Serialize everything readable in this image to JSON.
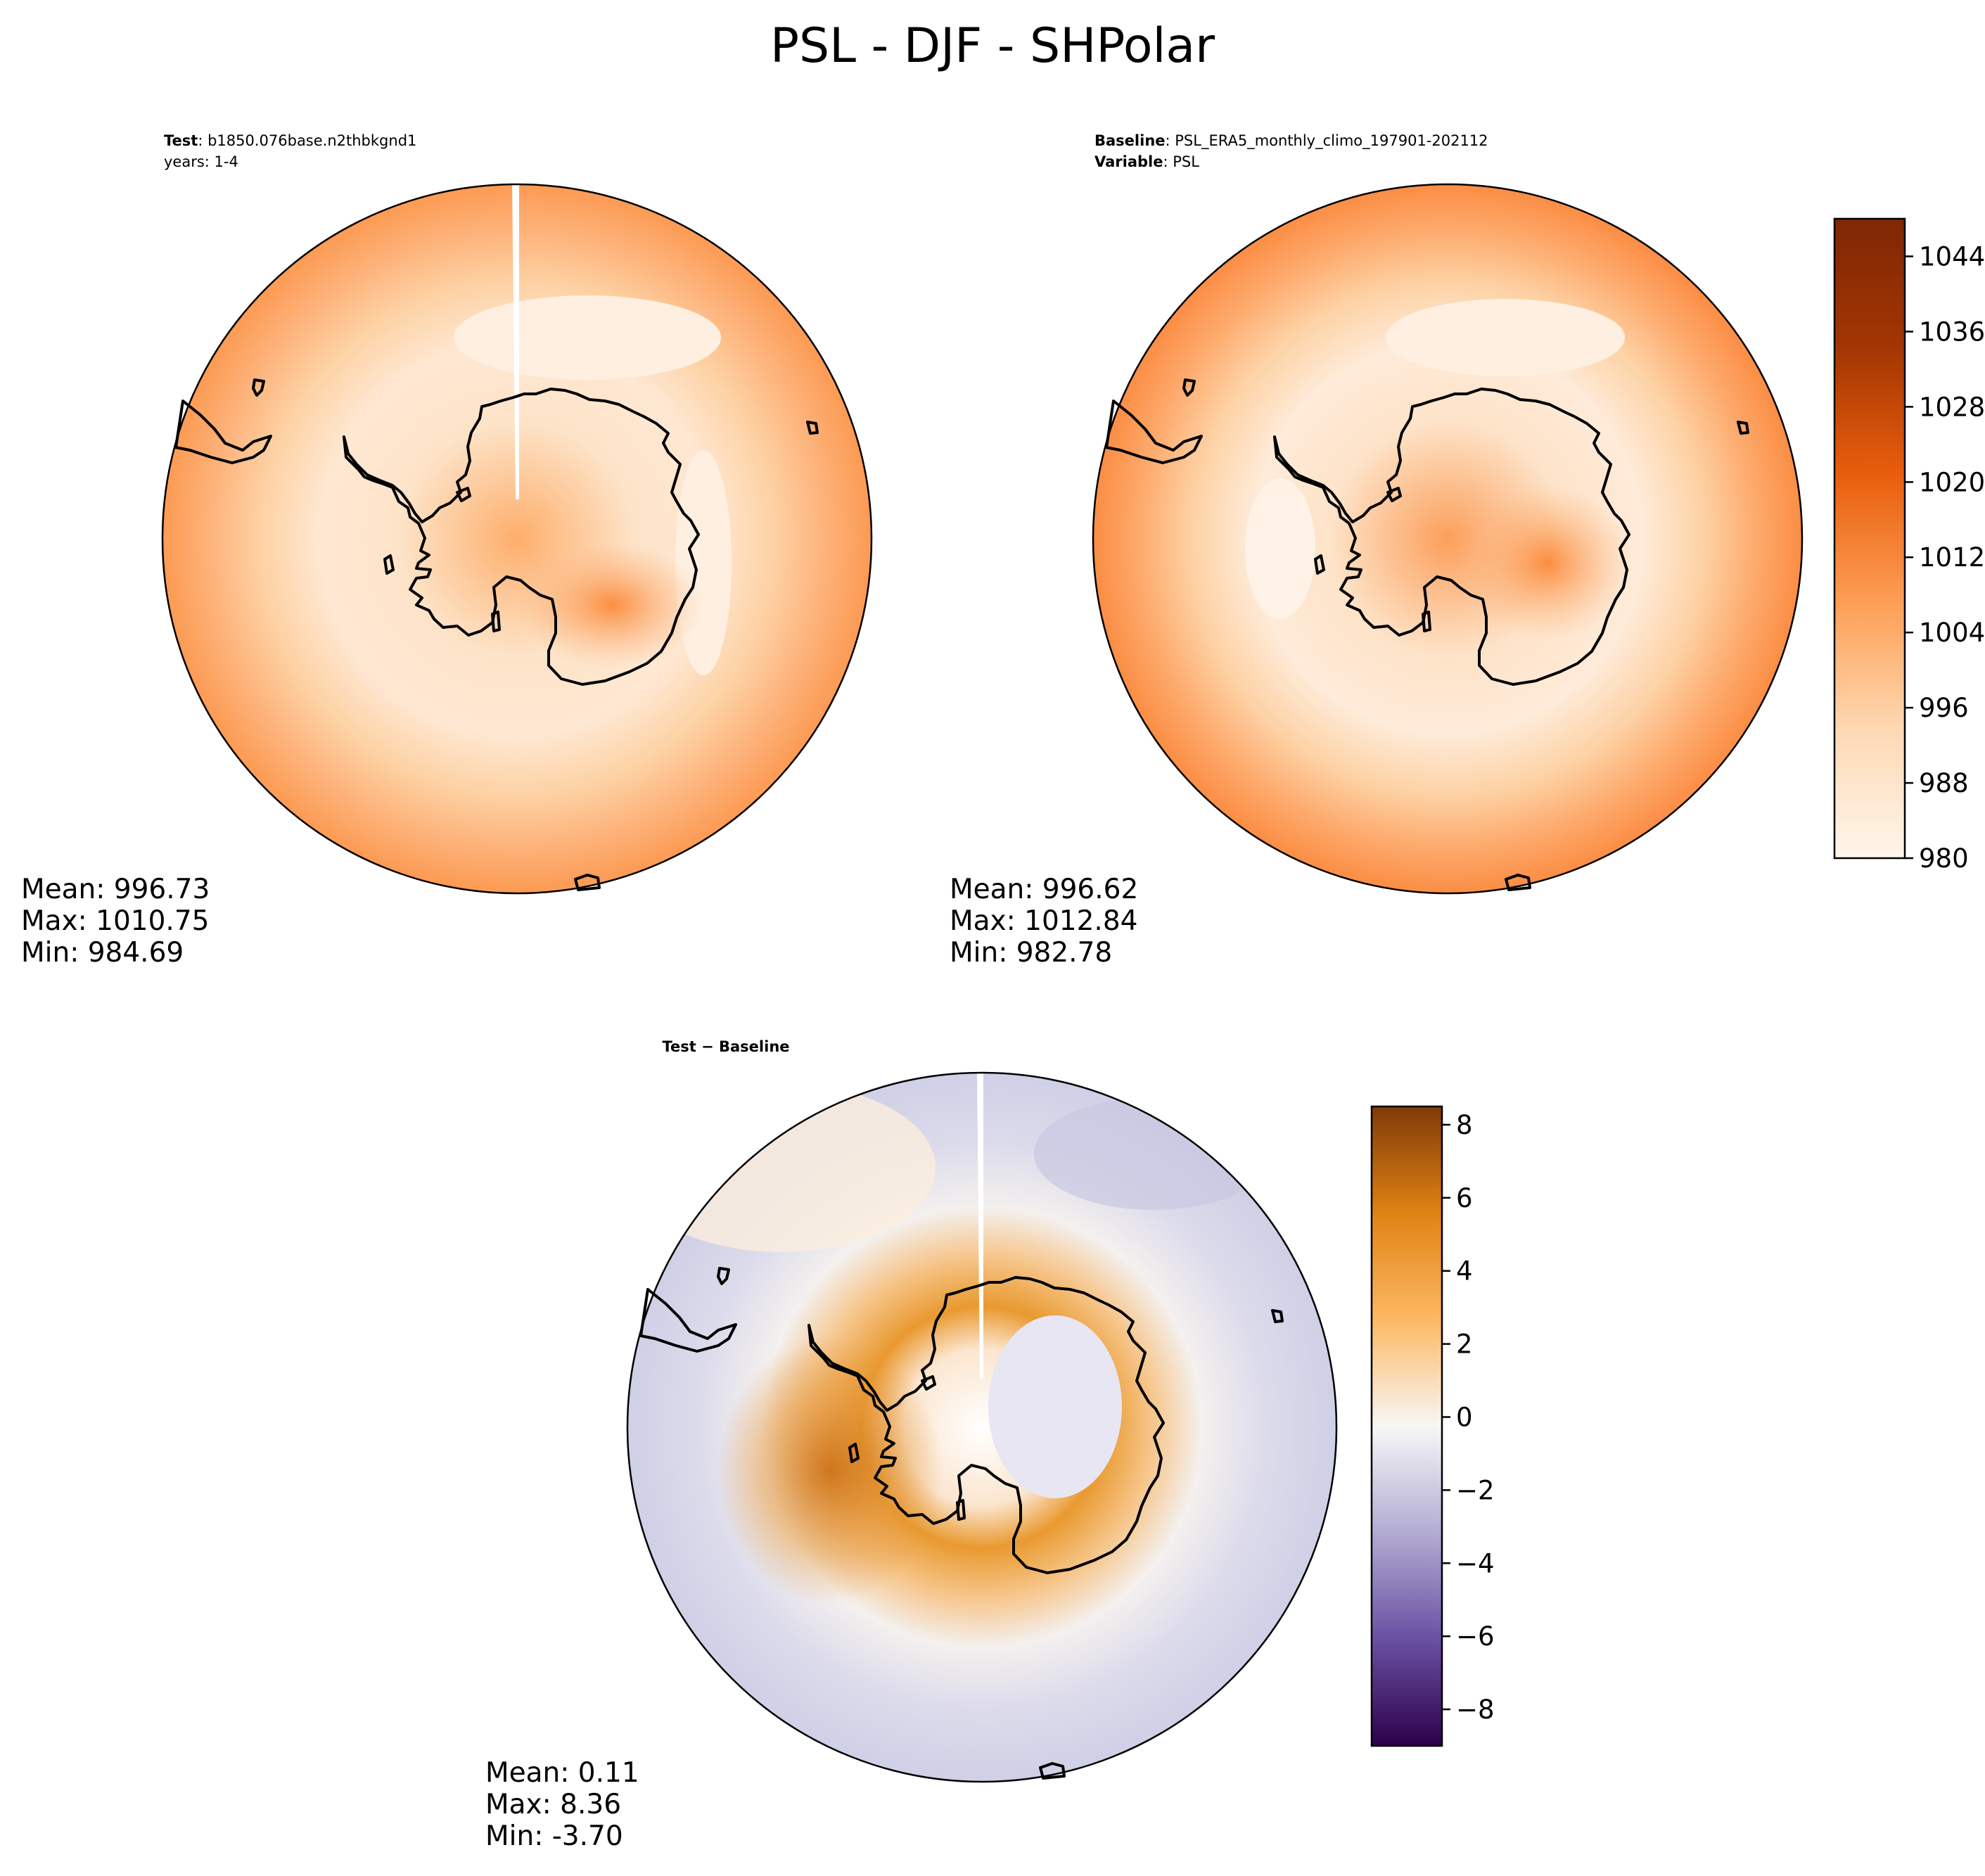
{
  "figure_title": "PSL - DJF - SHPolar",
  "panels": {
    "test": {
      "label_bold": "Test",
      "label_rest": ": b1850.076base.n2thbkgnd1",
      "years": "years: 1-4",
      "stats": [
        "Mean: 996.73",
        "Max: 1010.75",
        "Min: 984.69"
      ]
    },
    "baseline": {
      "label_bold": "Baseline",
      "label_rest": ": PSL_ERA5_monthly_climo_197901-202112",
      "var_bold": "Variable",
      "var_rest": ": PSL",
      "stats": [
        "Mean: 996.62",
        "Max: 1012.84",
        "Min: 982.78"
      ]
    },
    "diff": {
      "label": "Test − Baseline",
      "stats": [
        "Mean:  0.11",
        "Max:  8.36",
        "Min: -3.70"
      ]
    }
  },
  "colorbars": {
    "psl": {
      "ticks": [
        "980",
        "988",
        "996",
        "1004",
        "1012",
        "1020",
        "1028",
        "1036",
        "1044"
      ],
      "min": 980,
      "max": 1048,
      "colors": [
        "#fff5eb",
        "#fdd9b4",
        "#fd9e54",
        "#e95e0d",
        "#a33503",
        "#7f2704"
      ]
    },
    "diff": {
      "ticks": [
        "8",
        "6",
        "4",
        "2",
        "0",
        "−2",
        "−4",
        "−6",
        "−8"
      ],
      "min": -9,
      "max": 8.5,
      "colors": [
        "#2d004b",
        "#6a51a3",
        "#b2abd2",
        "#f7f7f7",
        "#fdb863",
        "#e08214",
        "#7f3b08"
      ]
    }
  },
  "chart_data": [
    {
      "type": "heatmap",
      "title": "Test",
      "variable": "PSL",
      "season": "DJF",
      "region": "SHPolar",
      "mean": 996.73,
      "max": 1010.75,
      "min": 984.69,
      "colorbar_range": [
        980,
        1048
      ]
    },
    {
      "type": "heatmap",
      "title": "Baseline",
      "variable": "PSL",
      "season": "DJF",
      "region": "SHPolar",
      "mean": 996.62,
      "max": 1012.84,
      "min": 982.78,
      "colorbar_range": [
        980,
        1048
      ]
    },
    {
      "type": "heatmap",
      "title": "Test − Baseline",
      "variable": "PSL",
      "season": "DJF",
      "region": "SHPolar",
      "mean": 0.11,
      "max": 8.36,
      "min": -3.7,
      "colorbar_range": [
        -9,
        8.5
      ]
    }
  ]
}
